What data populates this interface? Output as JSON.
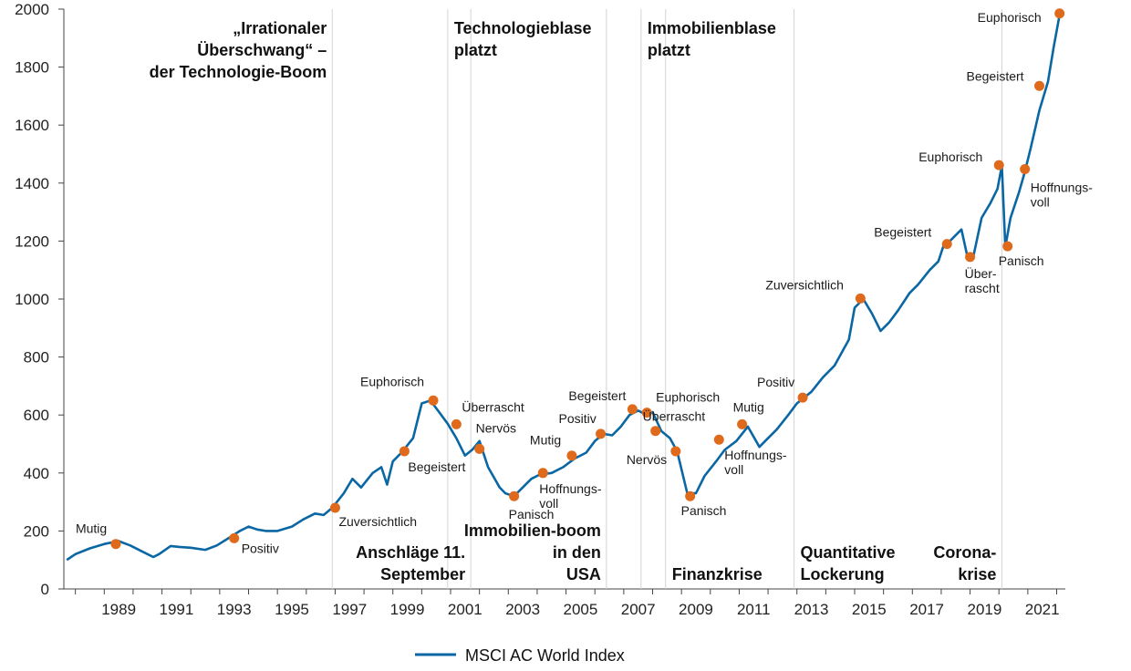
{
  "chart_data": {
    "type": "line",
    "title": "",
    "xlabel": "",
    "ylabel": "",
    "ylim": [
      0,
      2000
    ],
    "xlim": [
      1987.6,
      2022.3
    ],
    "y_ticks": [
      0,
      200,
      400,
      600,
      800,
      1000,
      1200,
      1400,
      1600,
      1800,
      2000
    ],
    "x_ticks": [
      1989,
      1991,
      1993,
      1995,
      1997,
      1999,
      2001,
      2003,
      2005,
      2007,
      2009,
      2011,
      2013,
      2015,
      2017,
      2019,
      2021
    ],
    "legend": {
      "placement": "bottom-center",
      "label": "MSCI AC World Index"
    },
    "series": [
      {
        "name": "MSCI AC World Index",
        "color": "#0a67a3",
        "x": [
          1987.7,
          1988.0,
          1988.5,
          1989.0,
          1989.5,
          1989.9,
          1990.3,
          1990.7,
          1990.9,
          1991.3,
          1991.6,
          1992.0,
          1992.5,
          1992.9,
          1993.3,
          1993.7,
          1994.0,
          1994.3,
          1994.6,
          1995.0,
          1995.5,
          1995.9,
          1996.3,
          1996.6,
          1996.9,
          1997.3,
          1997.6,
          1997.9,
          1998.3,
          1998.6,
          1998.8,
          1999.0,
          1999.3,
          1999.7,
          2000.0,
          2000.3,
          2000.6,
          2000.9,
          2001.2,
          2001.5,
          2001.75,
          2002.0,
          2002.3,
          2002.7,
          2002.9,
          2003.2,
          2003.5,
          2003.8,
          2004.1,
          2004.5,
          2004.9,
          2005.3,
          2005.7,
          2006.0,
          2006.3,
          2006.6,
          2006.9,
          2007.2,
          2007.5,
          2007.8,
          2008.0,
          2008.3,
          2008.6,
          2008.85,
          2009.2,
          2009.5,
          2009.8,
          2010.2,
          2010.5,
          2010.9,
          2011.3,
          2011.7,
          2011.9,
          2012.3,
          2012.7,
          2013.0,
          2013.5,
          2013.9,
          2014.3,
          2014.8,
          2015.0,
          2015.3,
          2015.6,
          2015.9,
          2016.2,
          2016.5,
          2016.9,
          2017.2,
          2017.6,
          2017.9,
          2018.1,
          2018.3,
          2018.7,
          2018.9,
          2019.1,
          2019.4,
          2019.7,
          2019.95,
          2020.1,
          2020.22,
          2020.4,
          2020.7,
          2020.9,
          2021.1,
          2021.4,
          2021.7,
          2021.9,
          2022.1
        ],
        "values": [
          100,
          120,
          140,
          155,
          165,
          150,
          130,
          110,
          120,
          148,
          145,
          142,
          135,
          150,
          175,
          200,
          215,
          205,
          200,
          200,
          215,
          240,
          260,
          255,
          280,
          330,
          380,
          350,
          400,
          420,
          360,
          440,
          470,
          520,
          640,
          650,
          610,
          570,
          520,
          460,
          480,
          510,
          420,
          350,
          330,
          320,
          350,
          380,
          395,
          400,
          420,
          450,
          470,
          510,
          535,
          530,
          560,
          600,
          615,
          600,
          610,
          545,
          520,
          475,
          330,
          330,
          390,
          440,
          480,
          510,
          560,
          490,
          510,
          550,
          600,
          640,
          680,
          730,
          770,
          860,
          970,
          1000,
          950,
          890,
          920,
          960,
          1020,
          1050,
          1100,
          1130,
          1190,
          1200,
          1240,
          1150,
          1140,
          1280,
          1330,
          1380,
          1460,
          1180,
          1280,
          1370,
          1440,
          1520,
          1650,
          1750,
          1870,
          1980
        ]
      }
    ],
    "annotations": [
      {
        "label": "Mutig",
        "x": 1989.4,
        "y": 155
      },
      {
        "label": "Positiv",
        "x": 1993.5,
        "y": 175
      },
      {
        "label": "Zuversichtlich",
        "x": 1997.0,
        "y": 280
      },
      {
        "label": "Begeistert",
        "x": 1999.4,
        "y": 475
      },
      {
        "label": "Euphorisch",
        "x": 2000.4,
        "y": 650
      },
      {
        "label": "Überrascht",
        "x": 2001.2,
        "y": 568
      },
      {
        "label": "Nervös",
        "x": 2002.0,
        "y": 483
      },
      {
        "label": "Panisch",
        "x": 2003.2,
        "y": 320
      },
      {
        "label": "Hoffnungs-voll",
        "x": 2004.2,
        "y": 400
      },
      {
        "label": "Mutig",
        "x": 2005.2,
        "y": 460
      },
      {
        "label": "Positiv",
        "x": 2006.2,
        "y": 535
      },
      {
        "label": "Begeistert",
        "x": 2007.3,
        "y": 620
      },
      {
        "label": "Euphorisch",
        "x": 2007.8,
        "y": 608
      },
      {
        "label": "Überrascht",
        "x": 2008.1,
        "y": 545
      },
      {
        "label": "Nervös",
        "x": 2008.8,
        "y": 475
      },
      {
        "label": "Panisch",
        "x": 2009.3,
        "y": 320
      },
      {
        "label": "Hoffnungs-voll",
        "x": 2010.3,
        "y": 515
      },
      {
        "label": "Mutig",
        "x": 2011.1,
        "y": 568
      },
      {
        "label": "Positiv",
        "x": 2013.2,
        "y": 660
      },
      {
        "label": "Zuversichtlich",
        "x": 2015.2,
        "y": 1002
      },
      {
        "label": "Begeistert",
        "x": 2018.2,
        "y": 1190
      },
      {
        "label": "Über-rascht",
        "x": 2019.0,
        "y": 1145
      },
      {
        "label": "Euphorisch",
        "x": 2020.0,
        "y": 1462
      },
      {
        "label": "Panisch",
        "x": 2020.3,
        "y": 1182
      },
      {
        "label": "Hoffnungs-voll",
        "x": 2020.9,
        "y": 1448
      },
      {
        "label": "Begeistert",
        "x": 2021.4,
        "y": 1735
      },
      {
        "label": "Euphorisch",
        "x": 2022.1,
        "y": 1985
      }
    ],
    "events": [
      {
        "text": "„Irrationaler Überschwang“ – der Technologie-Boom",
        "x": 1996.9,
        "position": "top-left"
      },
      {
        "text": "Technologieblase platzt",
        "x": 2000.9,
        "position": "top-right"
      },
      {
        "text": "Immobilienblase platzt",
        "x": 2007.6,
        "position": "top-right"
      },
      {
        "text": "Anschläge 11. September",
        "x": 2001.7,
        "position": "bottom-left"
      },
      {
        "text": "Immobilien-boom in den USA",
        "x": 2006.4,
        "position": "bottom-left"
      },
      {
        "text": "Finanzkrise",
        "x": 2008.45,
        "position": "bottom-right"
      },
      {
        "text": "Quantitative Lockerung",
        "x": 2012.9,
        "position": "bottom-right"
      },
      {
        "text": "Corona-krise",
        "x": 2020.1,
        "position": "bottom-left"
      }
    ]
  }
}
